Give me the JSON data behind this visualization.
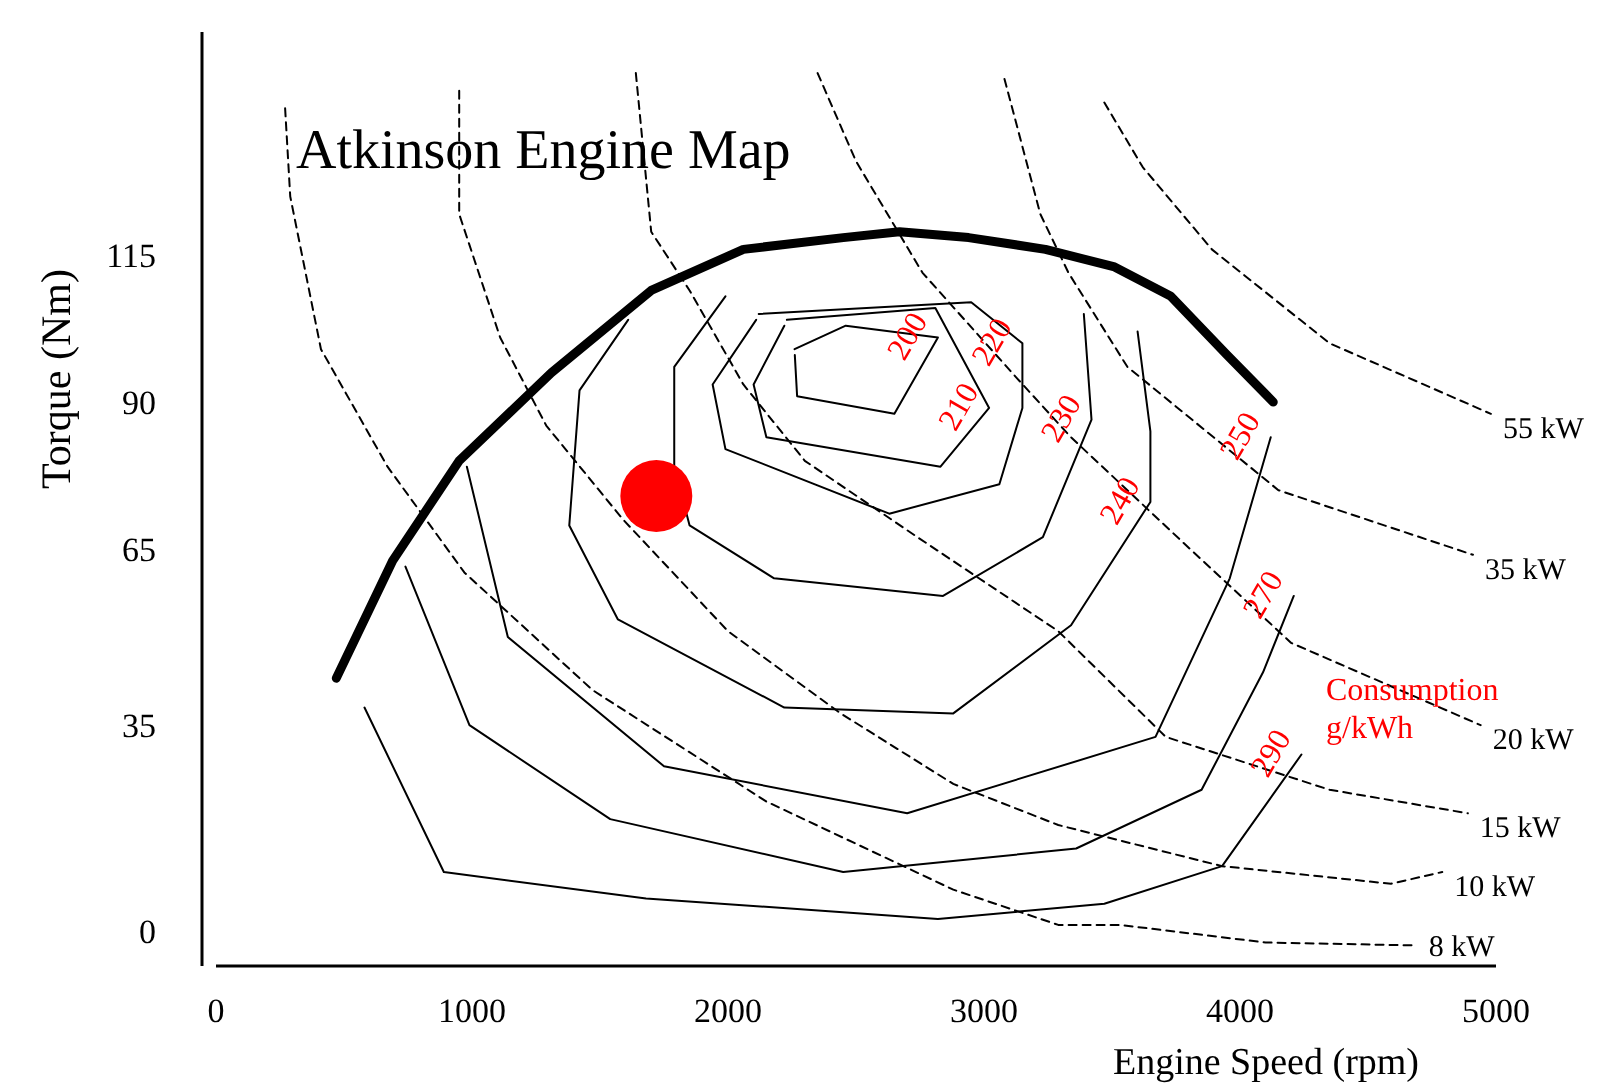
{
  "chart_data": {
    "type": "line",
    "title": "Atkinson Engine Map",
    "xlabel": "Engine Speed (rpm)",
    "ylabel": "Torque (Nm)",
    "xlim": [
      0,
      5000
    ],
    "xticks": [
      0,
      1000,
      2000,
      3000,
      4000,
      5000
    ],
    "ylim": [
      -6,
      153
    ],
    "yticks": [
      0,
      35,
      65,
      90,
      115
    ],
    "series": [
      {
        "color": "#000000",
        "x": [
          470,
          690,
          950,
          1310,
          1700,
          2060,
          2450,
          2670,
          2940,
          3240,
          3510,
          3730,
          3950,
          4130
        ],
        "values": [
          43,
          63,
          80,
          95,
          109,
          116,
          118,
          119,
          118,
          116,
          113,
          108,
          98,
          90
        ]
      },
      {
        "name": "200",
        "color": "#000000",
        "x": [
          2260,
          2460,
          2820,
          2650,
          2270,
          2261
        ],
        "values": [
          99,
          103,
          101,
          88,
          91,
          98
        ]
      },
      {
        "name": "210",
        "color": "#000000",
        "x": [
          2230,
          2810,
          3020,
          2830,
          2150,
          2100,
          2220
        ],
        "values": [
          104,
          106,
          89,
          79,
          84,
          93,
          103
        ]
      },
      {
        "name": "220",
        "color": "#000000",
        "x": [
          2120,
          2950,
          3150,
          3150,
          3060,
          2630,
          1990,
          1940,
          2110
        ],
        "values": [
          105,
          107,
          100,
          89,
          76,
          71,
          82,
          93,
          104
        ]
      },
      {
        "name": "230",
        "color": "#000000",
        "x": [
          1990,
          1790,
          1790,
          1850,
          2180,
          2840,
          3230,
          3420,
          3390
        ],
        "values": [
          108,
          96,
          79,
          69,
          60,
          57,
          67,
          87,
          105
        ]
      },
      {
        "name": "240",
        "color": "#000000",
        "x": [
          1610,
          1420,
          1380,
          1570,
          2220,
          2880,
          3340,
          3650,
          3650,
          3600
        ],
        "values": [
          104,
          92,
          69,
          53,
          38,
          37,
          52,
          73,
          85,
          102
        ]
      },
      {
        "name": "250",
        "color": "#000000",
        "x": [
          980,
          1140,
          1750,
          2700,
          3670,
          3960,
          4120
        ],
        "values": [
          79,
          50,
          28,
          20,
          33,
          60,
          84
        ]
      },
      {
        "name": "270",
        "color": "#000000",
        "x": [
          740,
          990,
          1540,
          2450,
          3360,
          3850,
          4090,
          4210
        ],
        "values": [
          62,
          35,
          19,
          10,
          14,
          24,
          44,
          57
        ]
      },
      {
        "name": "290",
        "color": "#000000",
        "x": [
          580,
          890,
          1680,
          2820,
          3470,
          3930,
          4240
        ],
        "values": [
          38,
          10,
          5.5,
          2,
          4.6,
          11,
          30
        ]
      },
      {
        "name": "55 kW",
        "line_style": "dashed",
        "color": "#000000",
        "x": [
          3470,
          3620,
          3890,
          4350,
          4980
        ],
        "values": [
          141,
          130,
          116,
          100,
          88
        ]
      },
      {
        "name": "35 kW",
        "line_style": "dashed",
        "color": "#000000",
        "x": [
          3080,
          3220,
          3330,
          3560,
          4150,
          4910
        ],
        "values": [
          145,
          122,
          112,
          96,
          75,
          64
        ]
      },
      {
        "name": "20 kW",
        "line_style": "dashed",
        "color": "#000000",
        "x": [
          2350,
          2500,
          2760,
          3130,
          3340,
          3780,
          4200,
          4940
        ],
        "values": [
          146,
          131,
          112,
          94,
          84,
          66,
          49,
          35
        ]
      },
      {
        "name": "15 kW",
        "line_style": "dashed",
        "color": "#000000",
        "x": [
          1640,
          1700,
          1850,
          2060,
          2300,
          2740,
          3290,
          3710,
          4350,
          4890
        ],
        "values": [
          146,
          119,
          109,
          93,
          80,
          67,
          51,
          33,
          24,
          20
        ]
      },
      {
        "name": "10 kW",
        "line_style": "dashed",
        "color": "#000000",
        "x": [
          950,
          950,
          1110,
          1290,
          1590,
          2000,
          2440,
          2880,
          3290,
          3930,
          4590,
          4790
        ],
        "values": [
          143,
          122,
          101,
          86,
          70,
          51,
          37,
          25,
          18,
          11,
          8,
          10
        ]
      },
      {
        "name": "8 kW",
        "line_style": "dashed",
        "color": "#000000",
        "x": [
          270,
          290,
          410,
          670,
          970,
          1470,
          2150,
          2880,
          3290,
          3530,
          4100,
          4690
        ],
        "values": [
          140,
          125,
          99,
          79,
          61,
          41,
          22,
          7,
          1,
          1,
          -2,
          -2.5
        ]
      },
      {
        "type": "scatter",
        "marker": "circle",
        "color": "#ff0000",
        "x": [
          1720
        ],
        "values": [
          74
        ]
      }
    ],
    "annotations": [
      "Consumption g/kWh"
    ]
  }
}
